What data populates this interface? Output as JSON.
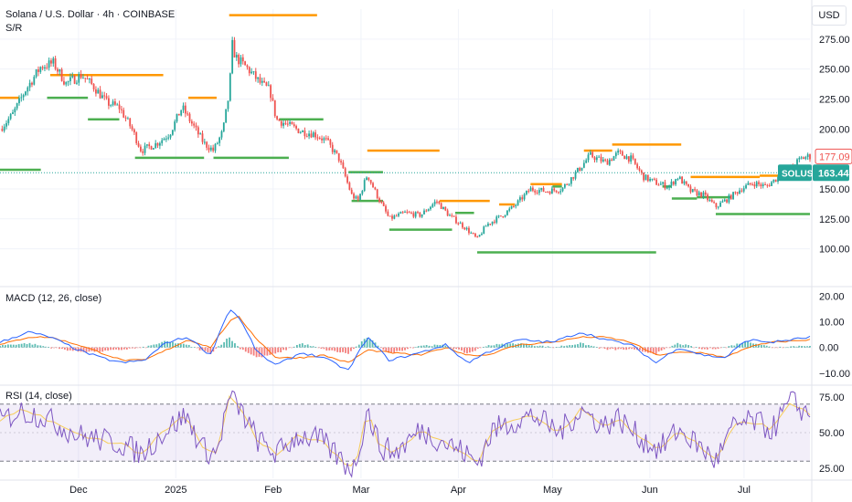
{
  "header": {
    "title": "Solana / U.S. Dollar · 4h · COINBASE",
    "indicator": "S/R",
    "currency_button": "USD"
  },
  "colors": {
    "resistance": "#ff9800",
    "support": "#4caf50",
    "up": "#26a69a",
    "down": "#ef5350",
    "macd": "#2962ff",
    "signal": "#ff6d00",
    "rsi": "#7e57c2",
    "grid": "#f0f3fa",
    "axis_text": "#131722"
  },
  "chart_data": [
    {
      "type": "candlestick",
      "title": "Solana / U.S. Dollar · 4h · COINBASE",
      "ylim": [
        70,
        300
      ],
      "y_ticks": [
        100,
        125,
        150,
        175,
        200,
        225,
        250,
        275
      ],
      "y_tick_labels": [
        "100.00",
        "125.00",
        "150.00",
        "175.00",
        "200.00",
        "225.00",
        "250.00",
        "275.00"
      ],
      "x_labels": [
        "Dec",
        "2025",
        "Feb",
        "Mar",
        "Apr",
        "May",
        "Jun",
        "Jul"
      ],
      "x_label_dates": [
        "2024-12-01",
        "2025-01-01",
        "2025-02-01",
        "2025-03-01",
        "2025-04-01",
        "2025-05-01",
        "2025-06-01",
        "2025-07-01"
      ],
      "x_range": [
        "2024-11-06",
        "2025-07-22"
      ],
      "price_path": [
        [
          "2024-11-06",
          200
        ],
        [
          "2024-11-10",
          212
        ],
        [
          "2024-11-14",
          232
        ],
        [
          "2024-11-19",
          252
        ],
        [
          "2024-11-23",
          255
        ],
        [
          "2024-11-27",
          238
        ],
        [
          "2024-12-02",
          245
        ],
        [
          "2024-12-06",
          235
        ],
        [
          "2024-12-10",
          222
        ],
        [
          "2024-12-14",
          218
        ],
        [
          "2024-12-18",
          200
        ],
        [
          "2024-12-21",
          182
        ],
        [
          "2024-12-26",
          188
        ],
        [
          "2024-12-30",
          196
        ],
        [
          "2025-01-03",
          218
        ],
        [
          "2025-01-06",
          205
        ],
        [
          "2025-01-10",
          188
        ],
        [
          "2025-01-13",
          182
        ],
        [
          "2025-01-16",
          198
        ],
        [
          "2025-01-18",
          230
        ],
        [
          "2025-01-19",
          270
        ],
        [
          "2025-01-20",
          260
        ],
        [
          "2025-01-24",
          250
        ],
        [
          "2025-01-28",
          238
        ],
        [
          "2025-01-31",
          232
        ],
        [
          "2025-02-02",
          208
        ],
        [
          "2025-02-06",
          203
        ],
        [
          "2025-02-10",
          198
        ],
        [
          "2025-02-14",
          196
        ],
        [
          "2025-02-18",
          190
        ],
        [
          "2025-02-22",
          175
        ],
        [
          "2025-02-26",
          145
        ],
        [
          "2025-02-28",
          140
        ],
        [
          "2025-03-03",
          162
        ],
        [
          "2025-03-06",
          145
        ],
        [
          "2025-03-10",
          125
        ],
        [
          "2025-03-15",
          130
        ],
        [
          "2025-03-20",
          128
        ],
        [
          "2025-03-25",
          140
        ],
        [
          "2025-03-29",
          128
        ],
        [
          "2025-04-03",
          118
        ],
        [
          "2025-04-07",
          108
        ],
        [
          "2025-04-10",
          120
        ],
        [
          "2025-04-15",
          128
        ],
        [
          "2025-04-19",
          136
        ],
        [
          "2025-04-24",
          150
        ],
        [
          "2025-04-29",
          148
        ],
        [
          "2025-05-04",
          150
        ],
        [
          "2025-05-09",
          165
        ],
        [
          "2025-05-13",
          178
        ],
        [
          "2025-05-18",
          172
        ],
        [
          "2025-05-22",
          180
        ],
        [
          "2025-05-26",
          175
        ],
        [
          "2025-05-30",
          160
        ],
        [
          "2025-06-03",
          155
        ],
        [
          "2025-06-07",
          152
        ],
        [
          "2025-06-10",
          160
        ],
        [
          "2025-06-14",
          148
        ],
        [
          "2025-06-18",
          145
        ],
        [
          "2025-06-22",
          135
        ],
        [
          "2025-06-26",
          142
        ],
        [
          "2025-06-30",
          150
        ],
        [
          "2025-07-04",
          155
        ],
        [
          "2025-07-08",
          152
        ],
        [
          "2025-07-12",
          160
        ],
        [
          "2025-07-16",
          168
        ],
        [
          "2025-07-19",
          175
        ],
        [
          "2025-07-21",
          177
        ]
      ],
      "levels": [
        {
          "kind": "resistance",
          "y": 226,
          "x0": "2024-11-06",
          "x1": "2024-11-12"
        },
        {
          "kind": "resistance",
          "y": 245,
          "x0": "2024-11-22",
          "x1": "2024-12-28"
        },
        {
          "kind": "resistance",
          "y": 226,
          "x0": "2025-01-05",
          "x1": "2025-01-14"
        },
        {
          "kind": "resistance",
          "y": 295,
          "x0": "2025-01-18",
          "x1": "2025-02-15"
        },
        {
          "kind": "resistance",
          "y": 182,
          "x0": "2025-03-03",
          "x1": "2025-03-26"
        },
        {
          "kind": "resistance",
          "y": 140,
          "x0": "2025-03-26",
          "x1": "2025-04-11"
        },
        {
          "kind": "resistance",
          "y": 137,
          "x0": "2025-04-14",
          "x1": "2025-04-19"
        },
        {
          "kind": "resistance",
          "y": 154,
          "x0": "2025-04-24",
          "x1": "2025-05-04"
        },
        {
          "kind": "resistance",
          "y": 182,
          "x0": "2025-05-11",
          "x1": "2025-05-20"
        },
        {
          "kind": "resistance",
          "y": 187,
          "x0": "2025-05-20",
          "x1": "2025-06-11"
        },
        {
          "kind": "resistance",
          "y": 160,
          "x0": "2025-06-14",
          "x1": "2025-07-06"
        },
        {
          "kind": "resistance",
          "y": 161,
          "x0": "2025-07-06",
          "x1": "2025-07-16"
        },
        {
          "kind": "support",
          "y": 166,
          "x0": "2024-11-06",
          "x1": "2024-11-19"
        },
        {
          "kind": "support",
          "y": 226,
          "x0": "2024-11-21",
          "x1": "2024-12-04"
        },
        {
          "kind": "support",
          "y": 208,
          "x0": "2024-12-04",
          "x1": "2024-12-14"
        },
        {
          "kind": "support",
          "y": 176,
          "x0": "2024-12-19",
          "x1": "2025-01-10"
        },
        {
          "kind": "support",
          "y": 176,
          "x0": "2025-01-13",
          "x1": "2025-02-06"
        },
        {
          "kind": "support",
          "y": 208,
          "x0": "2025-02-03",
          "x1": "2025-02-17"
        },
        {
          "kind": "support",
          "y": 164,
          "x0": "2025-02-25",
          "x1": "2025-03-08"
        },
        {
          "kind": "support",
          "y": 140,
          "x0": "2025-02-26",
          "x1": "2025-03-08"
        },
        {
          "kind": "support",
          "y": 116,
          "x0": "2025-03-10",
          "x1": "2025-03-30"
        },
        {
          "kind": "support",
          "y": 130,
          "x0": "2025-03-31",
          "x1": "2025-04-06"
        },
        {
          "kind": "support",
          "y": 97,
          "x0": "2025-04-07",
          "x1": "2025-06-03"
        },
        {
          "kind": "support",
          "y": 152,
          "x0": "2025-05-01",
          "x1": "2025-05-04"
        },
        {
          "kind": "support",
          "y": 152,
          "x0": "2025-06-05",
          "x1": "2025-06-08"
        },
        {
          "kind": "support",
          "y": 142,
          "x0": "2025-06-08",
          "x1": "2025-06-16"
        },
        {
          "kind": "support",
          "y": 143,
          "x0": "2025-06-16",
          "x1": "2025-06-27"
        },
        {
          "kind": "support",
          "y": 129,
          "x0": "2025-06-22",
          "x1": "2025-07-22"
        }
      ],
      "dotted_price": 163.44,
      "price_labels": [
        {
          "text": "177.09",
          "value": 177.09,
          "style": "outline"
        },
        {
          "text": "163.44",
          "value": 163.44,
          "style": "filled",
          "symbol": "SOLUSD"
        }
      ]
    },
    {
      "type": "macd",
      "title": "MACD (12, 26, close)",
      "ylim": [
        -14,
        23
      ],
      "y_ticks": [
        20,
        10,
        0,
        -10
      ],
      "y_tick_labels": [
        "20.00",
        "10.00",
        "0.00",
        "−10.00"
      ],
      "macd_path": [
        [
          "2024-11-06",
          2
        ],
        [
          "2024-11-15",
          6
        ],
        [
          "2024-11-22",
          4
        ],
        [
          "2024-12-01",
          -1
        ],
        [
          "2024-12-08",
          -4
        ],
        [
          "2024-12-15",
          -6
        ],
        [
          "2024-12-22",
          -5
        ],
        [
          "2024-12-29",
          2
        ],
        [
          "2025-01-05",
          4
        ],
        [
          "2025-01-12",
          -3
        ],
        [
          "2025-01-18",
          15
        ],
        [
          "2025-01-21",
          12
        ],
        [
          "2025-01-27",
          -2
        ],
        [
          "2025-02-02",
          -7
        ],
        [
          "2025-02-10",
          -2
        ],
        [
          "2025-02-17",
          -4
        ],
        [
          "2025-02-25",
          -9
        ],
        [
          "2025-03-03",
          4
        ],
        [
          "2025-03-10",
          -5
        ],
        [
          "2025-03-20",
          -2
        ],
        [
          "2025-03-28",
          1
        ],
        [
          "2025-04-04",
          -6
        ],
        [
          "2025-04-10",
          -2
        ],
        [
          "2025-04-20",
          3
        ],
        [
          "2025-05-01",
          2
        ],
        [
          "2025-05-10",
          6
        ],
        [
          "2025-05-18",
          3
        ],
        [
          "2025-05-26",
          1
        ],
        [
          "2025-06-03",
          -6
        ],
        [
          "2025-06-10",
          0
        ],
        [
          "2025-06-18",
          -3
        ],
        [
          "2025-06-25",
          -4
        ],
        [
          "2025-07-02",
          3
        ],
        [
          "2025-07-10",
          2
        ],
        [
          "2025-07-22",
          4
        ]
      ],
      "signal_path": [
        [
          "2024-11-06",
          1
        ],
        [
          "2024-11-15",
          4
        ],
        [
          "2024-11-22",
          4
        ],
        [
          "2024-12-01",
          1
        ],
        [
          "2024-12-08",
          -2
        ],
        [
          "2024-12-15",
          -5
        ],
        [
          "2024-12-22",
          -5
        ],
        [
          "2024-12-29",
          -1
        ],
        [
          "2025-01-05",
          3
        ],
        [
          "2025-01-12",
          0
        ],
        [
          "2025-01-18",
          10
        ],
        [
          "2025-01-21",
          12
        ],
        [
          "2025-01-27",
          3
        ],
        [
          "2025-02-02",
          -4
        ],
        [
          "2025-02-10",
          -4
        ],
        [
          "2025-02-17",
          -3
        ],
        [
          "2025-02-25",
          -6
        ],
        [
          "2025-03-03",
          -1
        ],
        [
          "2025-03-10",
          -2
        ],
        [
          "2025-03-20",
          -3
        ],
        [
          "2025-03-28",
          0
        ],
        [
          "2025-04-04",
          -3
        ],
        [
          "2025-04-10",
          -3
        ],
        [
          "2025-04-20",
          1
        ],
        [
          "2025-05-01",
          2
        ],
        [
          "2025-05-10",
          4
        ],
        [
          "2025-05-18",
          4
        ],
        [
          "2025-05-26",
          2
        ],
        [
          "2025-06-03",
          -3
        ],
        [
          "2025-06-10",
          -2
        ],
        [
          "2025-06-18",
          -2
        ],
        [
          "2025-06-25",
          -4
        ],
        [
          "2025-07-02",
          0
        ],
        [
          "2025-07-10",
          2
        ],
        [
          "2025-07-22",
          3
        ]
      ]
    },
    {
      "type": "rsi",
      "title": "RSI (14, close)",
      "ylim": [
        18,
        82
      ],
      "band": [
        30,
        70
      ],
      "midline": 50,
      "y_ticks": [
        75,
        50,
        25
      ],
      "y_tick_labels": [
        "75.00",
        "50.00",
        "25.00"
      ],
      "rsi_path": [
        [
          "2024-11-06",
          58
        ],
        [
          "2024-11-12",
          65
        ],
        [
          "2024-11-19",
          62
        ],
        [
          "2024-11-25",
          55
        ],
        [
          "2024-12-01",
          48
        ],
        [
          "2024-12-08",
          45
        ],
        [
          "2024-12-15",
          42
        ],
        [
          "2024-12-21",
          35
        ],
        [
          "2024-12-28",
          50
        ],
        [
          "2025-01-04",
          62
        ],
        [
          "2025-01-10",
          38
        ],
        [
          "2025-01-14",
          35
        ],
        [
          "2025-01-18",
          75
        ],
        [
          "2025-01-21",
          68
        ],
        [
          "2025-01-27",
          45
        ],
        [
          "2025-02-02",
          35
        ],
        [
          "2025-02-09",
          48
        ],
        [
          "2025-02-16",
          45
        ],
        [
          "2025-02-24",
          28
        ],
        [
          "2025-02-27",
          25
        ],
        [
          "2025-03-03",
          66
        ],
        [
          "2025-03-07",
          40
        ],
        [
          "2025-03-12",
          36
        ],
        [
          "2025-03-20",
          52
        ],
        [
          "2025-03-27",
          44
        ],
        [
          "2025-04-03",
          36
        ],
        [
          "2025-04-07",
          28
        ],
        [
          "2025-04-12",
          52
        ],
        [
          "2025-04-19",
          58
        ],
        [
          "2025-04-25",
          62
        ],
        [
          "2025-05-03",
          50
        ],
        [
          "2025-05-10",
          66
        ],
        [
          "2025-05-17",
          55
        ],
        [
          "2025-05-22",
          60
        ],
        [
          "2025-05-29",
          46
        ],
        [
          "2025-06-04",
          38
        ],
        [
          "2025-06-10",
          52
        ],
        [
          "2025-06-16",
          42
        ],
        [
          "2025-06-22",
          30
        ],
        [
          "2025-06-28",
          55
        ],
        [
          "2025-07-04",
          58
        ],
        [
          "2025-07-10",
          52
        ],
        [
          "2025-07-16",
          72
        ],
        [
          "2025-07-22",
          62
        ]
      ]
    }
  ]
}
